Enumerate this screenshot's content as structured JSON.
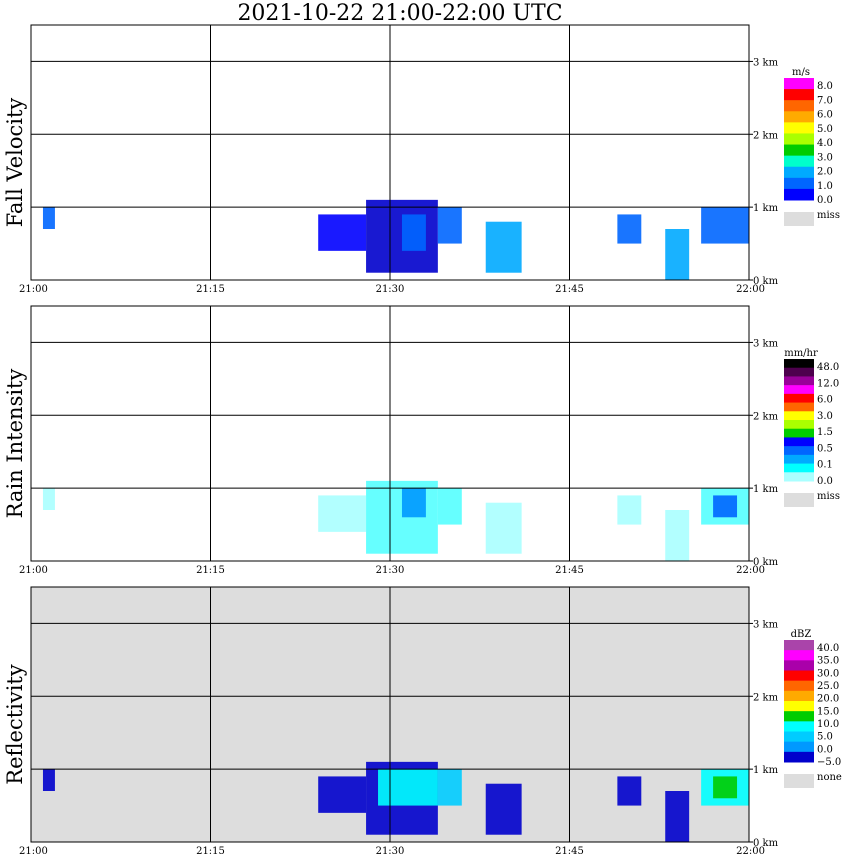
{
  "title": "2021-10-22   21:00-22:00 UTC",
  "chart_data": [
    {
      "type": "heatmap",
      "panel": "fall_velocity",
      "ylabel": "Fall Velocity",
      "x_tick_labels": [
        "21:00",
        "21:15",
        "21:30",
        "21:45",
        "22:00"
      ],
      "y_tick_labels": [
        "0 km",
        "1 km",
        "2 km",
        "3 km"
      ],
      "xlim": [
        "21:00",
        "22:00"
      ],
      "ylim_km": [
        0,
        3.5
      ],
      "grid": true,
      "legend_placement": "right",
      "background": "#ffffff",
      "legend": {
        "unit": "m/s",
        "labels": [
          "8.0",
          "7.0",
          "6.0",
          "5.0",
          "4.0",
          "3.0",
          "2.0",
          "1.0",
          "0.0"
        ],
        "colors": [
          "#ff00ff",
          "#ff0000",
          "#ff6600",
          "#ffaa00",
          "#ffff00",
          "#aaff00",
          "#00cc00",
          "#00ffcc",
          "#00aaff",
          "#0066ff",
          "#0000ff"
        ],
        "missing_label": "miss",
        "missing_color": "#dddddd"
      },
      "echoes": [
        {
          "t0": "21:01",
          "t1": "21:02",
          "z0": 0.7,
          "z1": 1.0,
          "color": "#0066ff"
        },
        {
          "t0": "21:24",
          "t1": "21:28",
          "z0": 0.4,
          "z1": 0.9,
          "color": "#0000ff"
        },
        {
          "t0": "21:28",
          "t1": "21:34",
          "z0": 0.1,
          "z1": 1.1,
          "color": "#0000cc"
        },
        {
          "t0": "21:31",
          "t1": "21:33",
          "z0": 0.4,
          "z1": 0.9,
          "color": "#0066ff"
        },
        {
          "t0": "21:34",
          "t1": "21:36",
          "z0": 0.5,
          "z1": 1.0,
          "color": "#0066ff"
        },
        {
          "t0": "21:38",
          "t1": "21:41",
          "z0": 0.1,
          "z1": 0.8,
          "color": "#00aaff"
        },
        {
          "t0": "21:49",
          "t1": "21:51",
          "z0": 0.5,
          "z1": 0.9,
          "color": "#0066ff"
        },
        {
          "t0": "21:53",
          "t1": "21:55",
          "z0": 0.0,
          "z1": 0.7,
          "color": "#00aaff"
        },
        {
          "t0": "21:56",
          "t1": "22:00",
          "z0": 0.5,
          "z1": 1.0,
          "color": "#0066ff"
        }
      ]
    },
    {
      "type": "heatmap",
      "panel": "rain_intensity",
      "ylabel": "Rain Intensity",
      "x_tick_labels": [
        "21:00",
        "21:15",
        "21:30",
        "21:45",
        "22:00"
      ],
      "y_tick_labels": [
        "0 km",
        "1 km",
        "2 km",
        "3 km"
      ],
      "xlim": [
        "21:00",
        "22:00"
      ],
      "ylim_km": [
        0,
        3.5
      ],
      "grid": true,
      "legend_placement": "right",
      "background": "#ffffff",
      "legend": {
        "unit": "mm/hr",
        "labels": [
          "48.0",
          "12.0",
          "6.0",
          "3.0",
          "1.5",
          "0.5",
          "0.1",
          "0.0"
        ],
        "colors": [
          "#000000",
          "#4d004d",
          "#990099",
          "#ff00ff",
          "#ff0000",
          "#ff6600",
          "#ffff00",
          "#aaff00",
          "#00cc00",
          "#0000ff",
          "#0066ff",
          "#00aaff",
          "#00ffff",
          "#aaffff"
        ],
        "missing_label": "miss",
        "missing_color": "#dddddd"
      },
      "echoes": [
        {
          "t0": "21:01",
          "t1": "21:02",
          "z0": 0.7,
          "z1": 1.0,
          "color": "#aaffff"
        },
        {
          "t0": "21:24",
          "t1": "21:28",
          "z0": 0.4,
          "z1": 0.9,
          "color": "#aaffff"
        },
        {
          "t0": "21:28",
          "t1": "21:34",
          "z0": 0.1,
          "z1": 1.1,
          "color": "#55ffff"
        },
        {
          "t0": "21:31",
          "t1": "21:33",
          "z0": 0.6,
          "z1": 1.0,
          "color": "#0099ff"
        },
        {
          "t0": "21:34",
          "t1": "21:36",
          "z0": 0.5,
          "z1": 1.0,
          "color": "#55ffff"
        },
        {
          "t0": "21:38",
          "t1": "21:41",
          "z0": 0.1,
          "z1": 0.8,
          "color": "#aaffff"
        },
        {
          "t0": "21:49",
          "t1": "21:51",
          "z0": 0.5,
          "z1": 0.9,
          "color": "#aaffff"
        },
        {
          "t0": "21:53",
          "t1": "21:55",
          "z0": 0.0,
          "z1": 0.7,
          "color": "#aaffff"
        },
        {
          "t0": "21:56",
          "t1": "22:00",
          "z0": 0.5,
          "z1": 1.0,
          "color": "#55ffff"
        },
        {
          "t0": "21:57",
          "t1": "21:59",
          "z0": 0.6,
          "z1": 0.9,
          "color": "#0066ff"
        }
      ]
    },
    {
      "type": "heatmap",
      "panel": "reflectivity",
      "ylabel": "Reflectivity",
      "x_tick_labels": [
        "21:00",
        "21:15",
        "21:30",
        "21:45",
        "22:00"
      ],
      "y_tick_labels": [
        "0 km",
        "1 km",
        "2 km",
        "3 km"
      ],
      "xlim": [
        "21:00",
        "22:00"
      ],
      "ylim_km": [
        0,
        3.5
      ],
      "grid": true,
      "legend_placement": "right",
      "background": "#dddddd",
      "legend": {
        "unit": "dBZ",
        "labels": [
          "40.0",
          "35.0",
          "30.0",
          "25.0",
          "20.0",
          "15.0",
          "10.0",
          "5.0",
          "0.0",
          "−5.0"
        ],
        "colors": [
          "#aa44aa",
          "#ff00ff",
          "#aa00aa",
          "#ff0000",
          "#ff6600",
          "#ffaa00",
          "#ffff00",
          "#00cc00",
          "#00ffff",
          "#00ccff",
          "#0099ff",
          "#0000cc"
        ],
        "missing_label": "none",
        "missing_color": "#dddddd"
      },
      "echoes": [
        {
          "t0": "21:01",
          "t1": "21:02",
          "z0": 0.7,
          "z1": 1.0,
          "color": "#0000cc"
        },
        {
          "t0": "21:24",
          "t1": "21:28",
          "z0": 0.4,
          "z1": 0.9,
          "color": "#0000cc"
        },
        {
          "t0": "21:28",
          "t1": "21:34",
          "z0": 0.1,
          "z1": 1.1,
          "color": "#0000cc"
        },
        {
          "t0": "21:29",
          "t1": "21:34",
          "z0": 0.5,
          "z1": 1.0,
          "color": "#00ffff"
        },
        {
          "t0": "21:34",
          "t1": "21:36",
          "z0": 0.5,
          "z1": 1.0,
          "color": "#00ccff"
        },
        {
          "t0": "21:38",
          "t1": "21:41",
          "z0": 0.1,
          "z1": 0.8,
          "color": "#0000cc"
        },
        {
          "t0": "21:49",
          "t1": "21:51",
          "z0": 0.5,
          "z1": 0.9,
          "color": "#0000cc"
        },
        {
          "t0": "21:53",
          "t1": "21:55",
          "z0": 0.0,
          "z1": 0.7,
          "color": "#0000cc"
        },
        {
          "t0": "21:56",
          "t1": "22:00",
          "z0": 0.5,
          "z1": 1.0,
          "color": "#00ffff"
        },
        {
          "t0": "21:57",
          "t1": "21:59",
          "z0": 0.6,
          "z1": 0.9,
          "color": "#00cc00"
        }
      ]
    }
  ]
}
